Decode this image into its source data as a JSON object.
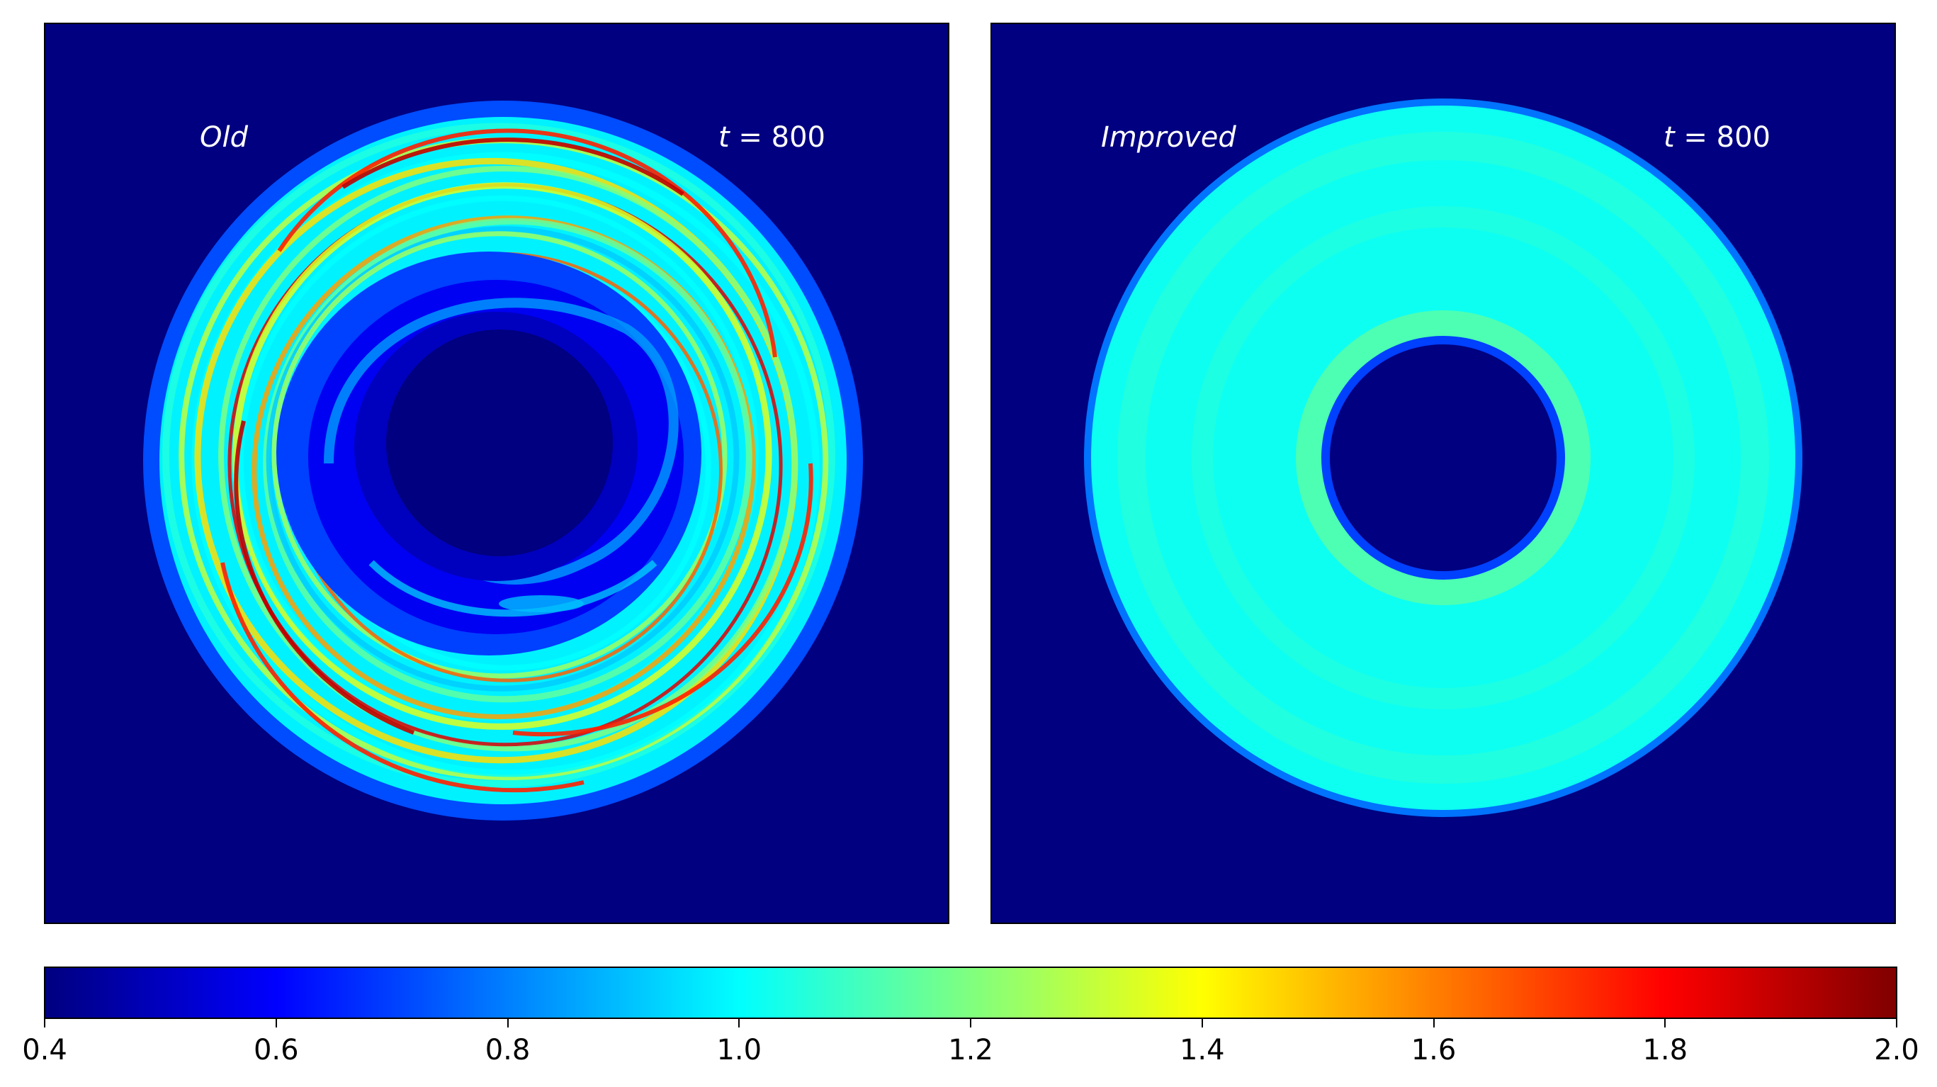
{
  "chart_data": {
    "type": "heatmap",
    "colormap": "jet",
    "colorbar": {
      "orientation": "horizontal",
      "range": [
        0.4,
        2.0
      ],
      "ticks": [
        "0.4",
        "0.6",
        "0.8",
        "1.0",
        "1.2",
        "1.4",
        "1.6",
        "1.8",
        "2.0"
      ]
    },
    "panels": [
      {
        "label": "Old",
        "time_var": "t",
        "time_eq": " = 800",
        "time": 800,
        "background_value": 0.4,
        "description_values": {
          "inner_hole": 0.4,
          "inner_ring_range": [
            0.5,
            0.8
          ],
          "outer_ring_range": [
            0.8,
            2.0
          ]
        }
      },
      {
        "label": "Improved",
        "time_var": "t",
        "time_eq": " = 800",
        "time": 800,
        "background_value": 0.4,
        "description_values": {
          "inner_hole": 0.4,
          "annulus_value": 1.05,
          "inner_band_value": 1.12
        }
      }
    ]
  }
}
